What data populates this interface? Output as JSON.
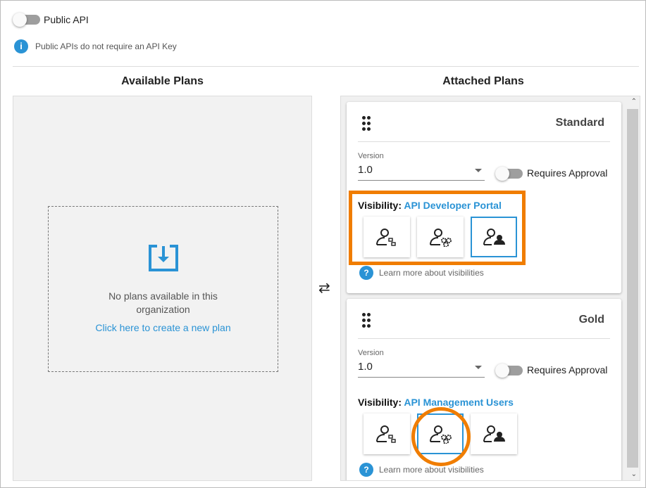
{
  "public_api": {
    "label": "Public API",
    "enabled": false,
    "info": "Public APIs do not require an API Key"
  },
  "available": {
    "heading": "Available Plans",
    "empty_line1": "No plans available in this",
    "empty_line2": "organization",
    "create_link": "Click here to create a new plan"
  },
  "swap_icon": "⇄",
  "attached": {
    "heading": "Attached Plans",
    "plans": [
      {
        "name": "Standard",
        "version_label": "Version",
        "version": "1.0",
        "requires_approval": "Requires Approval",
        "requires_approval_on": false,
        "visibility_label": "Visibility:",
        "visibility": "API Developer Portal",
        "selected": 2,
        "learn": "Learn more about visibilities"
      },
      {
        "name": "Gold",
        "version_label": "Version",
        "version": "1.0",
        "requires_approval": "Requires Approval",
        "requires_approval_on": false,
        "visibility_label": "Visibility:",
        "visibility": "API Management Users",
        "selected": 1,
        "learn": "Learn more about visibilities"
      }
    ]
  },
  "colors": {
    "accent": "#2a93d5",
    "highlight": "#f07d00"
  }
}
